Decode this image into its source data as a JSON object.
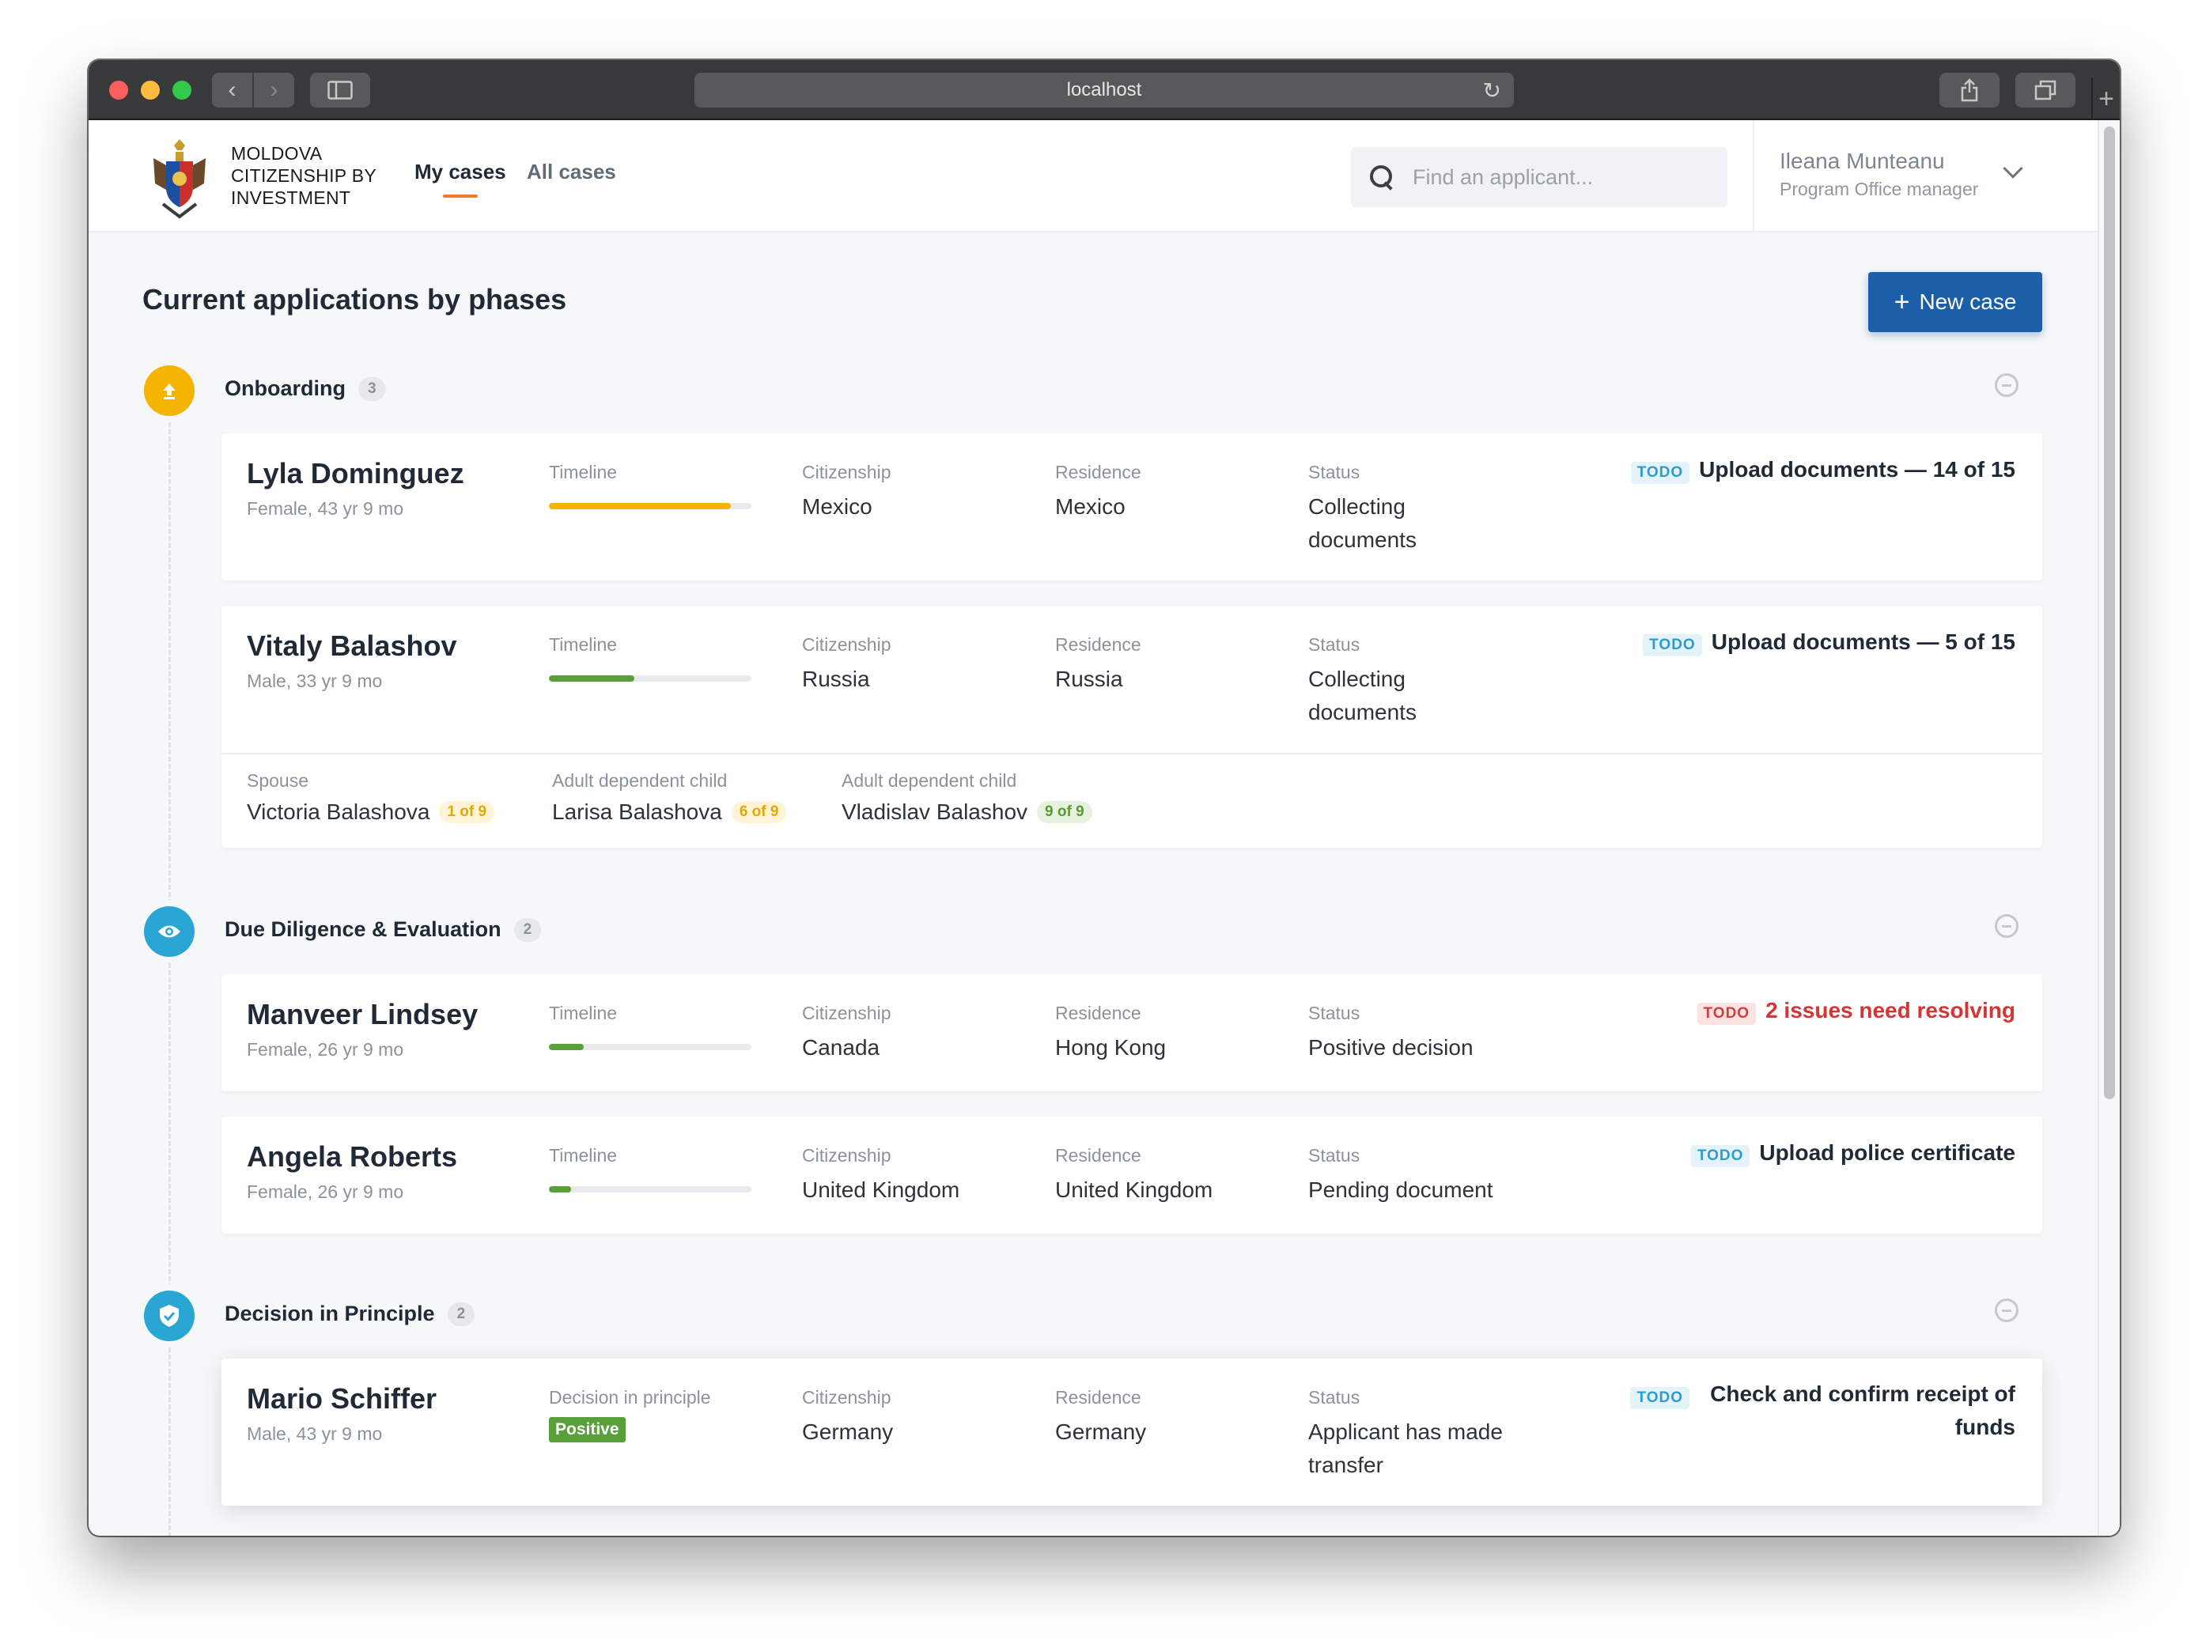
{
  "browser": {
    "url": "localhost"
  },
  "brand": {
    "line1": "MOLDOVA",
    "line2": "CITIZENSHIP BY",
    "line3": "INVESTMENT"
  },
  "nav": {
    "my_cases": "My cases",
    "all_cases": "All cases"
  },
  "search": {
    "placeholder": "Find an applicant..."
  },
  "user": {
    "name": "Ileana Munteanu",
    "role": "Program Office manager"
  },
  "page": {
    "title": "Current applications by phases",
    "new_case": "New case"
  },
  "labels": {
    "timeline": "Timeline",
    "citizenship": "Citizenship",
    "residence": "Residence",
    "status": "Status",
    "todo": "TODO",
    "decision_in_principle": "Decision in principle"
  },
  "colors": {
    "onboarding": "#f5b400",
    "due_diligence": "#2aa6d5",
    "decision": "#2aa6d5",
    "bar_yellow": "#f5b400",
    "bar_green": "#5aa03a",
    "accent": "#1c5fa8"
  },
  "phases": [
    {
      "name": "Onboarding",
      "count": "3",
      "icon": "upload-icon",
      "cases": [
        {
          "name": "Lyla Dominguez",
          "sub": "Female, 43 yr 9 mo",
          "timeline": 0.9,
          "citizenship": "Mexico",
          "residence": "Mexico",
          "status": "Collecting documents",
          "todo": "Upload documents — 14 of 15"
        },
        {
          "name": "Vitaly Balashov",
          "sub": "Male, 33 yr 9 mo",
          "timeline": 0.42,
          "citizenship": "Russia",
          "residence": "Russia",
          "status": "Collecting documents",
          "todo": "Upload documents — 5 of 15",
          "dependents": [
            {
              "label": "Spouse",
              "name": "Victoria Balashova",
              "progress": "1 of 9"
            },
            {
              "label": "Adult dependent child",
              "name": "Larisa Balashova",
              "progress": "6 of 9"
            },
            {
              "label": "Adult dependent child",
              "name": "Vladislav Balashov",
              "progress": "9 of 9"
            }
          ]
        }
      ]
    },
    {
      "name": "Due Diligence & Evaluation",
      "count": "2",
      "icon": "eye-icon",
      "cases": [
        {
          "name": "Manveer Lindsey",
          "sub": "Female, 26 yr 9 mo",
          "timeline": 0.17,
          "citizenship": "Canada",
          "residence": "Hong Kong",
          "status": "Positive decision",
          "todo": "2 issues need resolving"
        },
        {
          "name": "Angela Roberts",
          "sub": "Female, 26 yr 9 mo",
          "timeline": 0.11,
          "citizenship": "United Kingdom",
          "residence": "United Kingdom",
          "status": "Pending document",
          "todo": "Upload police certificate"
        }
      ]
    },
    {
      "name": "Decision in Principle",
      "count": "2",
      "icon": "shield-check-icon",
      "cases": [
        {
          "name": "Mario Schiffer",
          "sub": "Male, 43 yr 9 mo",
          "decision": "Positive",
          "citizenship": "Germany",
          "residence": "Germany",
          "status": "Applicant has made transfer",
          "todo": "Check and confirm receipt of funds"
        }
      ]
    }
  ]
}
